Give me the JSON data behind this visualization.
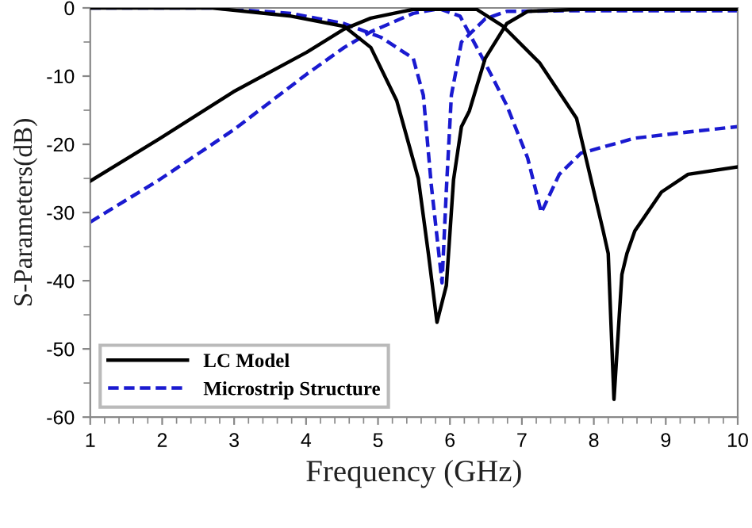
{
  "chart_data": {
    "type": "line",
    "xlabel": "Frequency (GHz)",
    "ylabel": "S-Parameters(dB)",
    "xlim": [
      1,
      10
    ],
    "xticks": [
      1,
      2,
      3,
      4,
      5,
      6,
      7,
      8,
      9,
      10
    ],
    "ylim": [
      -60,
      0
    ],
    "yticks": [
      -60,
      -50,
      -40,
      -30,
      -20,
      -10,
      0
    ],
    "legend": "bottom left",
    "grid": false,
    "marker": "none",
    "series": [
      {
        "name": "LC Model",
        "color": "#000000",
        "line_style": "solid",
        "x": [
          1,
          1.96,
          2.99,
          4.01,
          4.53,
          4.9,
          5.49,
          6.37,
          6.74,
          7.25,
          7.76,
          8.13,
          8.2,
          8.28,
          8.39,
          8.46,
          8.57,
          8.94,
          9.31,
          10
        ],
        "values": [
          -25.4,
          -19.2,
          -12.3,
          -6.5,
          -3.1,
          -1.5,
          -0.2,
          -0.2,
          -2.7,
          -8.1,
          -16.2,
          -32.7,
          -36,
          -57.4,
          -39.1,
          -36,
          -32.7,
          -27,
          -24.4,
          -23.3
        ]
      },
      {
        "color": "#000000",
        "line_style": "solid",
        "x": [
          1,
          2.69,
          3.79,
          4.53,
          4.9,
          5.26,
          5.56,
          5.7,
          5.82,
          5.95,
          6.05,
          6.16,
          6.27,
          6.49,
          6.79,
          7.08,
          7.8,
          10
        ],
        "values": [
          0,
          0,
          -1.2,
          -2.7,
          -5.8,
          -13.6,
          -25,
          -36,
          -46.1,
          -40.7,
          -25.2,
          -17.4,
          -15.1,
          -7.4,
          -2.3,
          -0.5,
          -0.2,
          -0.2
        ]
      },
      {
        "name": "Microstrip Structure",
        "color": "#1a1ad0",
        "line_style": "dashed",
        "x": [
          1,
          1.96,
          2.99,
          4.01,
          4.53,
          4.9,
          5.49,
          5.85,
          6.14,
          6.49,
          6.79,
          7.08,
          7.27,
          7.52,
          7.82,
          8.57,
          9.31,
          10
        ],
        "values": [
          -31.4,
          -25.2,
          -17.9,
          -9.7,
          -5.8,
          -3.5,
          -0.8,
          -0.1,
          -1.2,
          -8.1,
          -14.3,
          -22,
          -30,
          -24.4,
          -21.3,
          -19.1,
          -18.2,
          -17.4
        ]
      },
      {
        "color": "#1a1ad0",
        "line_style": "dashed",
        "x": [
          1,
          2.69,
          3.79,
          4.53,
          5.04,
          5.49,
          5.63,
          5.74,
          5.89,
          5.95,
          6.02,
          6.16,
          6.49,
          6.79,
          7.82,
          10
        ],
        "values": [
          0,
          0,
          -0.8,
          -2.3,
          -4.3,
          -7.4,
          -12.8,
          -25.9,
          -40.3,
          -26.7,
          -12.8,
          -5,
          -1.6,
          -0.5,
          -0.4,
          -0.4
        ]
      }
    ]
  }
}
